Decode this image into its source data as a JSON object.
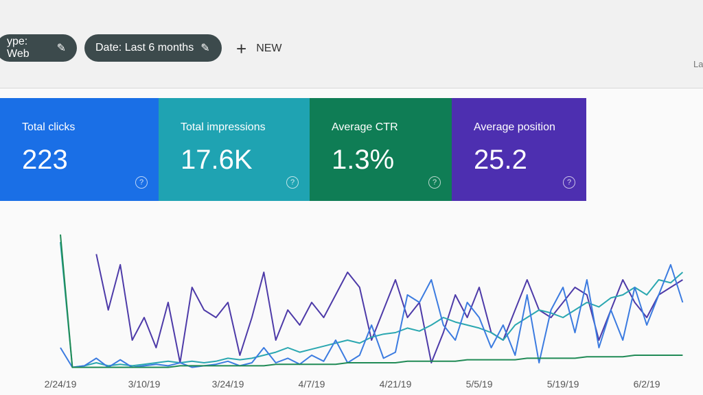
{
  "header": {
    "chips": [
      "ype: Web",
      "Date: Last 6 months"
    ],
    "new_button": "NEW",
    "corner_text": "La"
  },
  "cards": [
    {
      "label": "Total clicks",
      "value": "223",
      "color": "#1a6fe6"
    },
    {
      "label": "Total impressions",
      "value": "17.6K",
      "color": "#1fa3b2"
    },
    {
      "label": "Average CTR",
      "value": "1.3%",
      "color": "#0f7d55"
    },
    {
      "label": "Average position",
      "value": "25.2",
      "color": "#4d2fb0"
    }
  ],
  "chart_data": {
    "type": "line",
    "categories": [
      "2/24/19",
      null,
      null,
      null,
      null,
      null,
      null,
      "3/10/19",
      null,
      null,
      null,
      null,
      null,
      null,
      "3/24/19",
      null,
      null,
      null,
      null,
      null,
      null,
      "4/7/19",
      null,
      null,
      null,
      null,
      null,
      null,
      "4/21/19",
      null,
      null,
      null,
      null,
      null,
      null,
      "5/5/19",
      null,
      null,
      null,
      null,
      null,
      null,
      "5/19/19",
      null,
      null,
      null,
      null,
      null,
      null,
      "6/2/19",
      null,
      null,
      null
    ],
    "ylim": [
      0,
      100
    ],
    "series": [
      {
        "color": "#4d3aa8",
        "values": [
          null,
          null,
          null,
          77,
          40,
          70,
          20,
          35,
          15,
          45,
          5,
          55,
          40,
          35,
          45,
          10,
          35,
          65,
          20,
          40,
          30,
          45,
          35,
          50,
          65,
          55,
          20,
          40,
          60,
          35,
          45,
          5,
          25,
          50,
          35,
          55,
          25,
          20,
          40,
          60,
          40,
          35,
          45,
          55,
          50,
          20,
          40,
          60,
          45,
          35,
          50,
          55,
          60
        ]
      },
      {
        "color": "#2aa7b0",
        "values": [
          85,
          2,
          3,
          5,
          3,
          4,
          3,
          4,
          5,
          6,
          5,
          6,
          5,
          6,
          8,
          7,
          8,
          10,
          12,
          15,
          12,
          14,
          16,
          18,
          20,
          18,
          22,
          24,
          25,
          28,
          26,
          30,
          35,
          32,
          30,
          28,
          25,
          20,
          30,
          35,
          40,
          38,
          35,
          40,
          45,
          42,
          48,
          50,
          55,
          50,
          60,
          58,
          65
        ]
      },
      {
        "color": "#3b7be0",
        "values": [
          15,
          2,
          3,
          8,
          2,
          7,
          2,
          3,
          4,
          3,
          5,
          2,
          3,
          4,
          6,
          3,
          5,
          15,
          5,
          8,
          4,
          10,
          6,
          20,
          5,
          10,
          30,
          8,
          12,
          50,
          45,
          60,
          30,
          20,
          45,
          35,
          15,
          30,
          10,
          50,
          5,
          40,
          55,
          25,
          60,
          15,
          40,
          20,
          55,
          30,
          50,
          70,
          45
        ]
      },
      {
        "color": "#1f8a55",
        "values": [
          90,
          2,
          2,
          2,
          2,
          2,
          2,
          2,
          2,
          2,
          3,
          3,
          3,
          3,
          3,
          3,
          3,
          3,
          4,
          4,
          4,
          4,
          4,
          4,
          5,
          5,
          5,
          5,
          5,
          6,
          6,
          6,
          6,
          6,
          7,
          7,
          7,
          7,
          7,
          8,
          8,
          8,
          8,
          8,
          9,
          9,
          9,
          9,
          10,
          10,
          10,
          10,
          10
        ]
      }
    ]
  }
}
